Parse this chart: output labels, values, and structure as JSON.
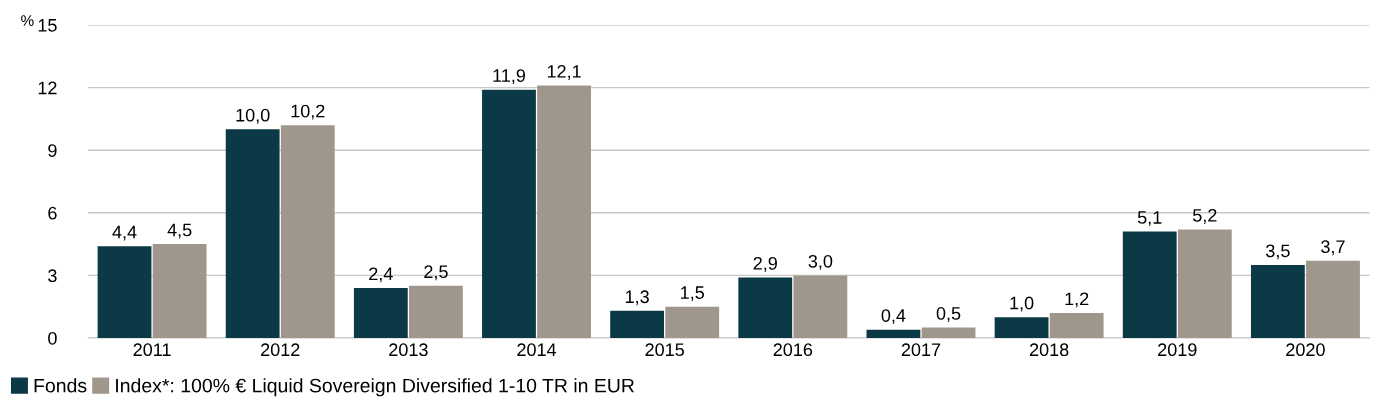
{
  "chart_data": {
    "type": "bar",
    "ylabel": "%",
    "categories": [
      "2011",
      "2012",
      "2013",
      "2014",
      "2015",
      "2016",
      "2017",
      "2018",
      "2019",
      "2020"
    ],
    "series": [
      {
        "name": "Fonds",
        "color": "#0b3945",
        "values": [
          4.4,
          10.0,
          2.4,
          11.9,
          1.3,
          2.9,
          0.4,
          1.0,
          5.1,
          3.5
        ],
        "value_labels": [
          "4,4",
          "10,0",
          "2,4",
          "11,9",
          "1,3",
          "2,9",
          "0,4",
          "1,0",
          "5,1",
          "3,5"
        ]
      },
      {
        "name": "Index*: 100% € Liquid Sovereign Diversified 1-10 TR in EUR",
        "color": "#a0978c",
        "values": [
          4.5,
          10.2,
          2.5,
          12.1,
          1.5,
          3.0,
          0.5,
          1.2,
          5.2,
          3.7
        ],
        "value_labels": [
          "4,5",
          "10,2",
          "2,5",
          "12,1",
          "1,5",
          "3,0",
          "0,5",
          "1,2",
          "5,2",
          "3,7"
        ]
      }
    ],
    "ylim": [
      0,
      15
    ],
    "yticks": [
      0,
      3,
      6,
      9,
      12,
      15
    ],
    "grid": "y",
    "legend": "bottom left"
  }
}
